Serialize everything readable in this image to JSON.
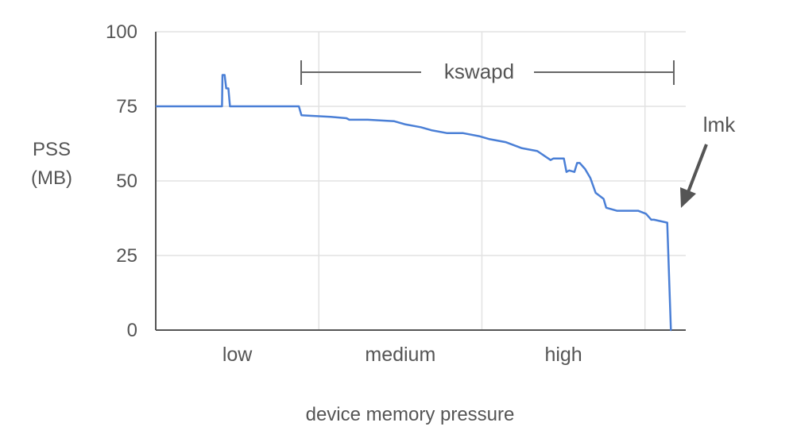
{
  "chart_data": {
    "type": "line",
    "ylabel_line1": "PSS",
    "ylabel_line2": "(MB)",
    "xlabel": "device memory pressure",
    "ylim": [
      0,
      100
    ],
    "y_ticks": [
      "100",
      "75",
      "50",
      "25",
      "0"
    ],
    "categories": [
      "low",
      "medium",
      "high"
    ],
    "grid": true,
    "annotations": {
      "range_label": "kswapd",
      "arrow_label": "lmk"
    },
    "series": [
      {
        "color": "#4a7fd6",
        "x": [
          0,
          0.12,
          0.125,
          0.126,
          0.13,
          0.133,
          0.137,
          0.14,
          0.145,
          0.27,
          0.275,
          0.33,
          0.36,
          0.365,
          0.38,
          0.4,
          0.45,
          0.47,
          0.5,
          0.52,
          0.55,
          0.58,
          0.61,
          0.63,
          0.66,
          0.69,
          0.72,
          0.745,
          0.75,
          0.76,
          0.77,
          0.775,
          0.78,
          0.79,
          0.795,
          0.8,
          0.81,
          0.82,
          0.83,
          0.845,
          0.85,
          0.87,
          0.9,
          0.91,
          0.925,
          0.935,
          0.94,
          0.965,
          0.972,
          0.973
        ],
        "y": [
          75,
          75,
          75,
          85.5,
          85.5,
          81,
          81,
          75,
          75,
          75,
          72,
          71.5,
          71,
          70.5,
          70.5,
          70.5,
          70,
          69,
          68,
          67,
          66,
          66,
          65,
          64,
          63,
          61,
          60,
          57,
          57.5,
          57.5,
          57.5,
          53,
          53.5,
          53,
          56,
          56,
          54,
          51,
          46,
          44,
          41,
          40,
          40,
          40,
          39,
          37,
          37,
          36,
          0,
          0
        ]
      }
    ]
  }
}
